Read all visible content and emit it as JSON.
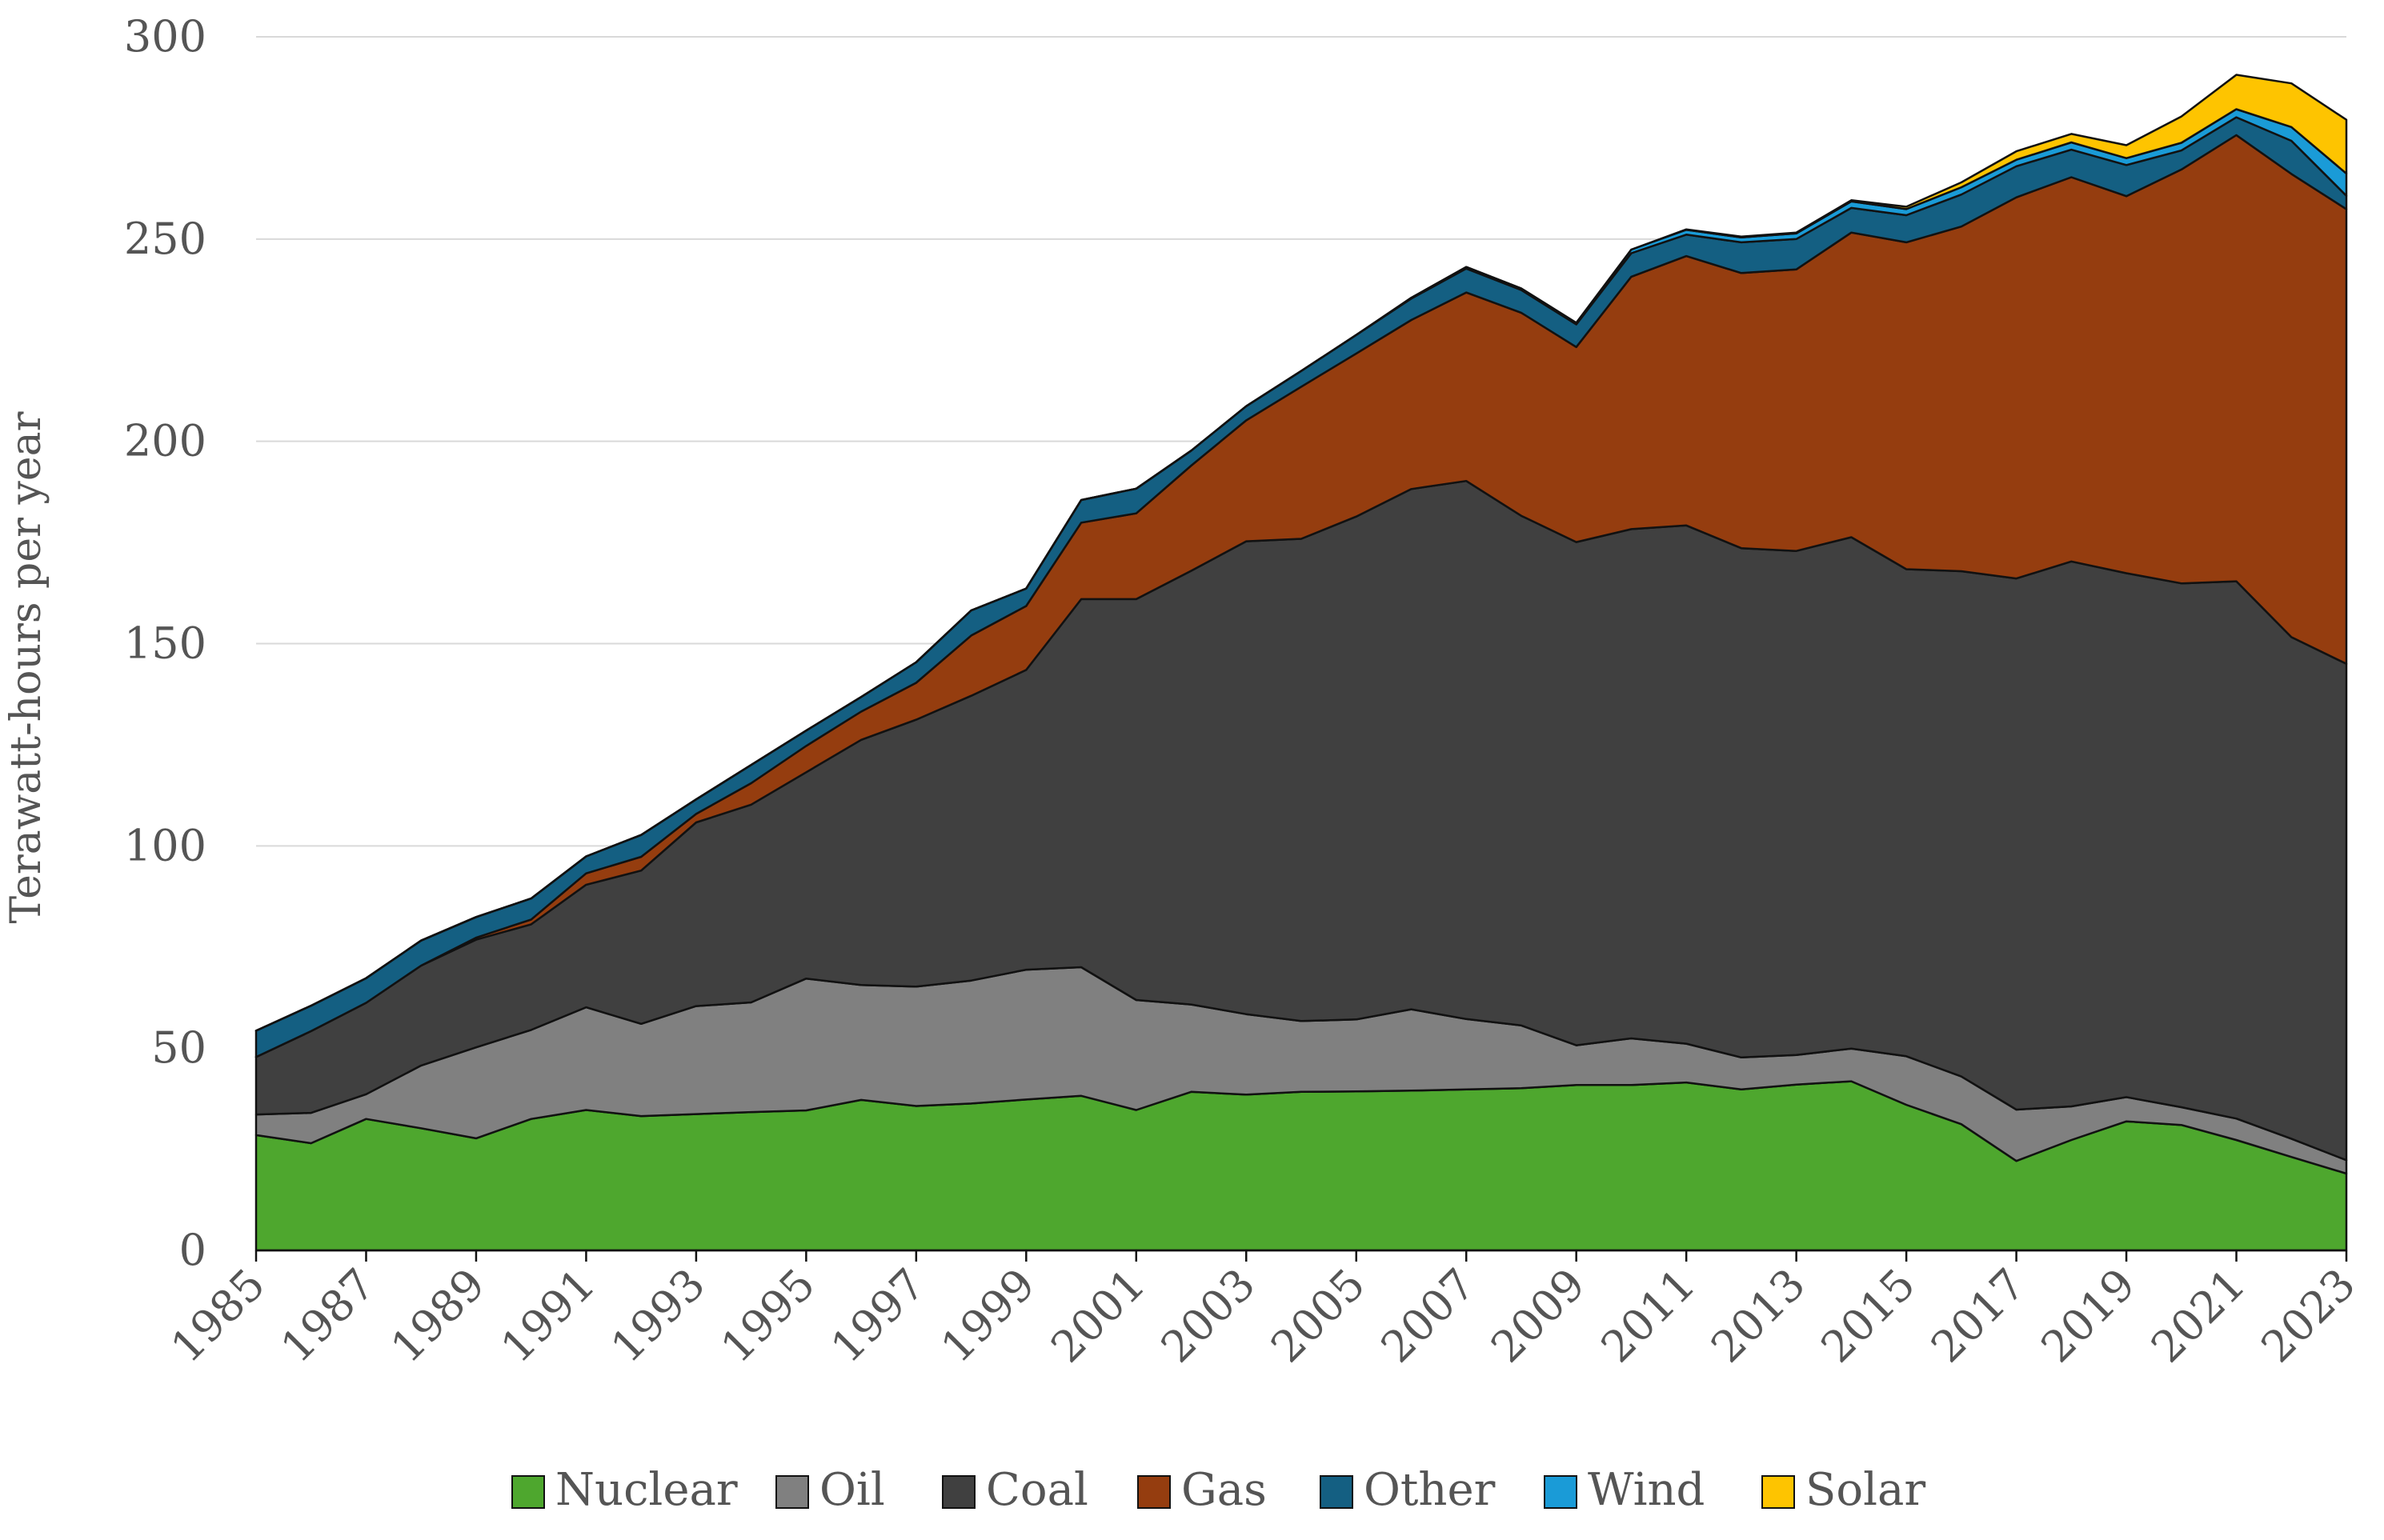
{
  "chart_data": {
    "type": "area",
    "stacked": true,
    "title": "",
    "xlabel": "",
    "ylabel": "Terawatt-hours per year",
    "ylim": [
      0,
      300
    ],
    "yticks": [
      0,
      50,
      100,
      150,
      200,
      250,
      300
    ],
    "xticks": [
      "1985",
      "1987",
      "1989",
      "1991",
      "1993",
      "1995",
      "1997",
      "1999",
      "2001",
      "2003",
      "2005",
      "2007",
      "2009",
      "2011",
      "2013",
      "2015",
      "2017",
      "2019",
      "2021",
      "2023"
    ],
    "grid": "horizontal",
    "legend": "bottom",
    "x": [
      1985,
      1986,
      1987,
      1988,
      1989,
      1990,
      1991,
      1992,
      1993,
      1994,
      1995,
      1996,
      1997,
      1998,
      1999,
      2000,
      2001,
      2002,
      2003,
      2004,
      2005,
      2006,
      2007,
      2008,
      2009,
      2010,
      2011,
      2012,
      2013,
      2014,
      2015,
      2016,
      2017,
      2018,
      2019,
      2020,
      2021,
      2022,
      2023
    ],
    "series": [
      {
        "name": "Nuclear",
        "color": "#4ea72e",
        "values": [
          28.5,
          26.5,
          32.5,
          30.2,
          27.7,
          32.5,
          34.7,
          33.2,
          33.7,
          34.2,
          34.6,
          37.2,
          35.7,
          36.3,
          37.3,
          38.2,
          34.7,
          39.2,
          38.5,
          39.2,
          39.3,
          39.5,
          39.8,
          40.1,
          40.9,
          40.9,
          41.5,
          39.8,
          41.0,
          41.8,
          36.0,
          31.2,
          22.1,
          27.3,
          31.9,
          31.0,
          27.3,
          23.1,
          19.0
        ]
      },
      {
        "name": "Oil",
        "color": "#808080",
        "values": [
          5.1,
          7.5,
          6.1,
          15.5,
          22.5,
          22.0,
          25.4,
          22.8,
          26.7,
          27.1,
          32.6,
          28.4,
          29.5,
          30.4,
          32.1,
          31.8,
          27.2,
          21.6,
          19.9,
          17.5,
          17.8,
          20.1,
          17.4,
          15.5,
          9.8,
          11.5,
          9.6,
          7.9,
          7.3,
          8.1,
          12.0,
          11.8,
          12.7,
          8.3,
          6.0,
          4.4,
          5.3,
          4.5,
          3.3
        ]
      },
      {
        "name": "Coal",
        "color": "#404040",
        "values": [
          14.2,
          20.2,
          22.6,
          24.7,
          26.6,
          26.1,
          30.3,
          37.9,
          45.4,
          48.9,
          51.0,
          60.6,
          66.0,
          70.4,
          74.1,
          91.0,
          99.1,
          107.2,
          116.9,
          119.2,
          124.3,
          128.6,
          133.0,
          126.0,
          124.4,
          125.9,
          128.1,
          125.9,
          124.6,
          126.4,
          120.4,
          124.9,
          131.3,
          134.7,
          129.5,
          129.5,
          132.8,
          124.0,
          122.7
        ]
      },
      {
        "name": "Gas",
        "color": "#953d0f",
        "values": [
          0.0,
          0.0,
          0.0,
          0.0,
          0.5,
          1.2,
          2.8,
          3.4,
          2.1,
          5.3,
          6.5,
          7.0,
          9.1,
          14.9,
          15.8,
          18.9,
          21.2,
          26.0,
          29.9,
          37.6,
          40.3,
          41.8,
          46.6,
          50.2,
          48.2,
          62.4,
          66.6,
          68.0,
          69.6,
          75.3,
          80.8,
          85.2,
          94.2,
          95.0,
          93.2,
          102.3,
          110.3,
          114.5,
          112.4
        ]
      },
      {
        "name": "Other",
        "color": "#145f82",
        "values": [
          6.5,
          6.3,
          6.1,
          6.2,
          5.1,
          5.2,
          4.2,
          5.4,
          3.6,
          4.5,
          3.8,
          3.6,
          5.1,
          6.2,
          4.3,
          5.6,
          6.1,
          3.7,
          3.5,
          3.9,
          4.6,
          5.3,
          5.9,
          5.6,
          5.6,
          5.8,
          5.3,
          7.6,
          7.5,
          6.1,
          6.7,
          7.9,
          7.7,
          6.8,
          7.7,
          4.7,
          4.4,
          8.2,
          3.3
        ]
      },
      {
        "name": "Wind",
        "color": "#1a9bd7",
        "values": [
          0,
          0,
          0,
          0,
          0,
          0,
          0,
          0,
          0,
          0,
          0,
          0,
          0,
          0,
          0,
          0,
          0,
          0,
          0,
          0,
          0,
          0.2,
          0.4,
          0.4,
          0.4,
          0.9,
          1.2,
          1.2,
          1.4,
          1.6,
          1.5,
          1.8,
          1.6,
          1.8,
          1.7,
          1.9,
          2.0,
          3.4,
          5.5
        ]
      },
      {
        "name": "Solar",
        "color": "#fec400",
        "values": [
          0,
          0,
          0,
          0,
          0,
          0,
          0,
          0,
          0,
          0,
          0,
          0,
          0,
          0,
          0,
          0,
          0,
          0,
          0,
          0,
          0,
          0,
          0,
          0,
          0,
          0,
          0.1,
          0.2,
          0.2,
          0.3,
          0.6,
          1.2,
          2.1,
          2.1,
          3.2,
          6.5,
          8.5,
          10.8,
          13.3
        ]
      }
    ]
  }
}
